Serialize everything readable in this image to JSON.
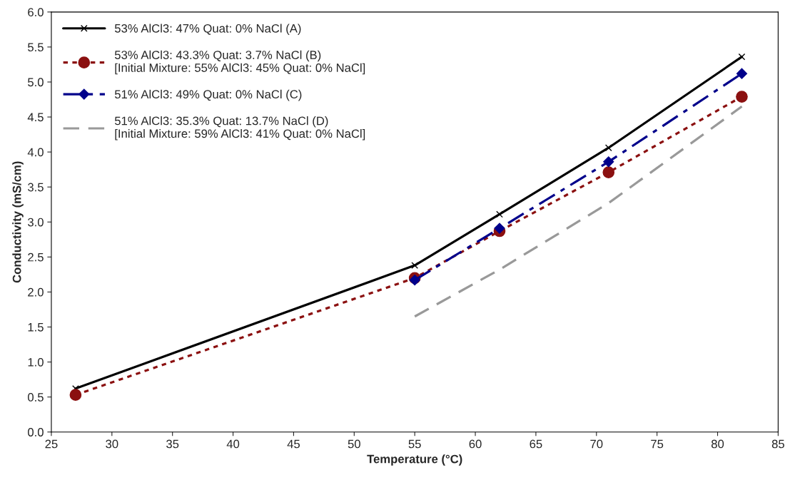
{
  "chart_data": {
    "type": "line",
    "xlabel": "Temperature (°C)",
    "ylabel": "Conductivity (mS/cm)",
    "xlim": [
      25,
      85
    ],
    "xticks": [
      25,
      30,
      35,
      40,
      45,
      50,
      55,
      60,
      65,
      70,
      75,
      80,
      85
    ],
    "ylim": [
      0,
      6
    ],
    "yticks": [
      {
        "value": 0,
        "label": "0.0"
      },
      0.5,
      {
        "value": 1,
        "label": "1.0"
      },
      1.5,
      {
        "value": 2,
        "label": "2.0"
      },
      2.5,
      {
        "value": 3,
        "label": "3.0"
      },
      3.5,
      {
        "value": 4,
        "label": "4.0"
      },
      4.5,
      {
        "value": 5,
        "label": "5.0"
      },
      5.5,
      {
        "value": 6,
        "label": "6.0"
      }
    ],
    "grid": false,
    "legend": "top left",
    "series": [
      {
        "name": "53% AlCl3: 47% Quat: 0% NaCl (A)",
        "color": "#000000",
        "marker": "cross",
        "line_style": "solid",
        "x": [
          27,
          55,
          62,
          71,
          82
        ],
        "values": [
          0.62,
          2.38,
          3.11,
          4.06,
          5.36
        ]
      },
      {
        "name": "53% AlCl3: 43.3% Quat: 3.7% NaCl (B)\n[Initial Mixture: 55% AlCl3: 45% Quat: 0% NaCl]",
        "color": "#8b1010",
        "marker": "circle",
        "line_style": "dotted",
        "x": [
          27,
          55,
          62,
          71,
          82
        ],
        "values": [
          0.53,
          2.2,
          2.87,
          3.71,
          4.79
        ]
      },
      {
        "name": "51% AlCl3: 49% Quat: 0% NaCl (C)",
        "color": "#00008b",
        "marker": "diamond",
        "line_style": "dashdot",
        "x": [
          55,
          62,
          71,
          82
        ],
        "values": [
          2.17,
          2.91,
          3.86,
          5.12
        ]
      },
      {
        "name": "51% AlCl3: 35.3% Quat: 13.7% NaCl (D)\n[Initial Mixture: 59% AlCl3: 41% Quat: 0% NaCl]",
        "color": "#999999",
        "marker": "none",
        "line_style": "dashed",
        "x": [
          55,
          62,
          71,
          82
        ],
        "values": [
          1.65,
          2.32,
          3.27,
          4.65
        ]
      }
    ]
  }
}
